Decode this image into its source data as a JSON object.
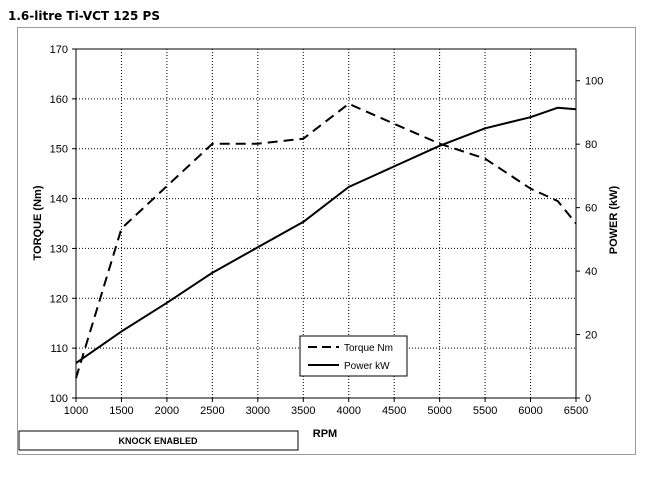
{
  "page_title": "1.6-litre Ti-VCT 125 PS",
  "status_box": "KNOCK ENABLED",
  "chart_data": {
    "type": "line",
    "xlabel": "RPM",
    "ylabel": "TORQUE (Nm)",
    "y2label": "POWER (kW)",
    "xlim": [
      1000,
      6500
    ],
    "ylim": [
      100,
      170
    ],
    "y2lim": [
      0,
      110
    ],
    "x_ticks": [
      1000,
      1500,
      2000,
      2500,
      3000,
      3500,
      4000,
      4500,
      5000,
      5500,
      6000,
      6500
    ],
    "y_ticks": [
      100,
      110,
      120,
      130,
      140,
      150,
      160,
      170
    ],
    "y2_ticks": [
      0,
      20,
      40,
      60,
      80,
      100
    ],
    "grid": true,
    "legend_position": "bottom-center",
    "series": [
      {
        "name": "Torque Nm",
        "axis": "left",
        "style": "dashed",
        "x": [
          1000,
          1500,
          2000,
          2500,
          3000,
          3500,
          4000,
          4500,
          5000,
          5500,
          6000,
          6300,
          6500
        ],
        "y": [
          104,
          134,
          142.5,
          151,
          151,
          152,
          159,
          155,
          151,
          148,
          142,
          139.5,
          135
        ]
      },
      {
        "name": "Power kW",
        "axis": "right",
        "style": "solid",
        "x": [
          1000,
          1500,
          2000,
          2500,
          3000,
          3500,
          4000,
          4500,
          5000,
          5500,
          6000,
          6300,
          6500
        ],
        "y": [
          11,
          21,
          30,
          39.5,
          47.5,
          55.5,
          66.5,
          73,
          79.5,
          85,
          88.5,
          91.5,
          91
        ]
      }
    ]
  }
}
